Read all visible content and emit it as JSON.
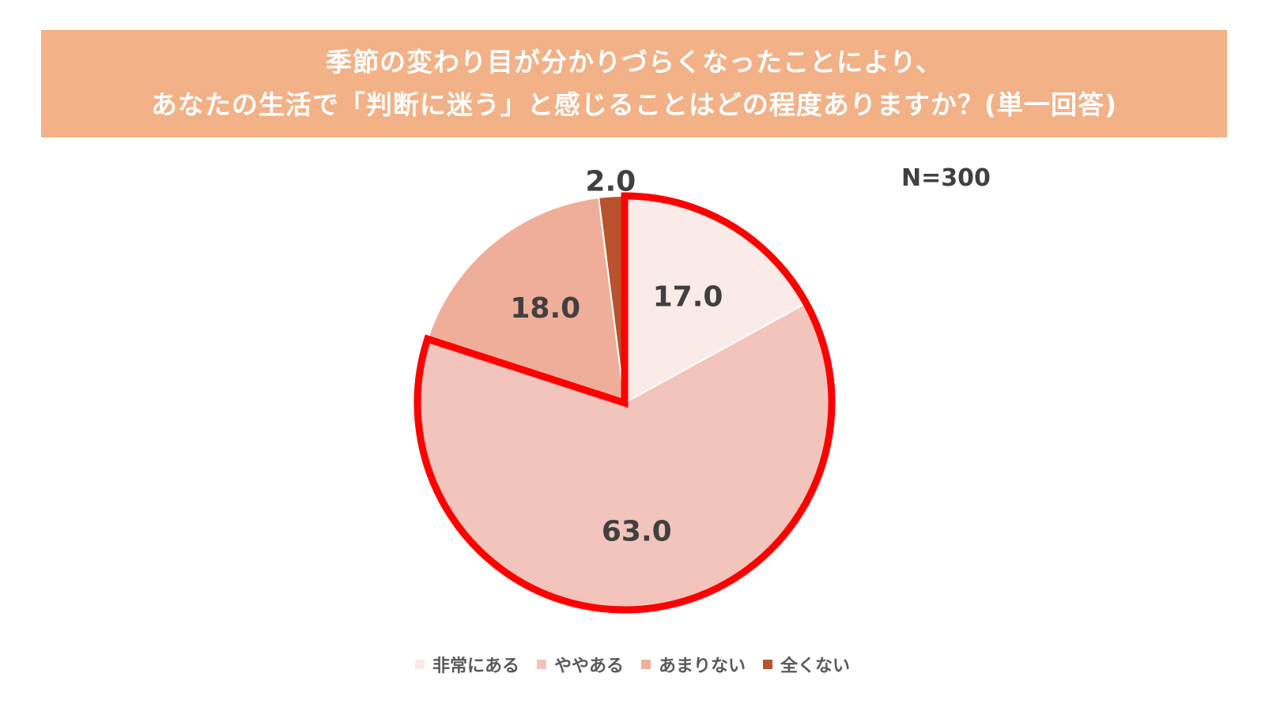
{
  "title": {
    "line1": "季節の変わり目が分かりづらくなったことにより、",
    "line2": "あなたの生活で「判断に迷う」と感じることはどの程度ありますか？(単一回答)"
  },
  "n_label": "N=300",
  "chart_data": {
    "type": "pie",
    "title": "季節の変わり目が分かりづらくなったことにより、あなたの生活で「判断に迷う」と感じることはどの程度ありますか？(単一回答)",
    "categories": [
      "非常にある",
      "ややある",
      "あまりない",
      "全くない"
    ],
    "values": [
      17.0,
      63.0,
      18.0,
      2.0
    ],
    "data_labels": [
      "17.0",
      "63.0",
      "18.0",
      "2.0"
    ],
    "colors": [
      "#fbebe8",
      "#f2c4bb",
      "#efae99",
      "#b8532e"
    ],
    "start": "12 o'clock, clockwise",
    "highlight": {
      "categories": [
        "非常にある",
        "ややある"
      ],
      "color": "#ff0000"
    },
    "legend_position": "bottom"
  }
}
